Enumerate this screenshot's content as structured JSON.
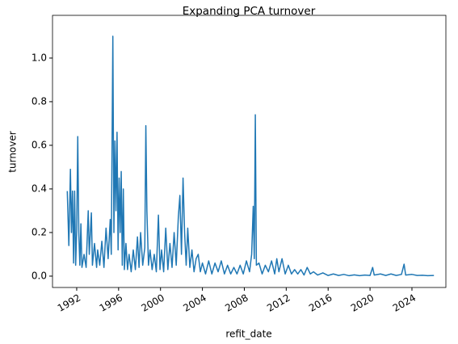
{
  "chart_data": {
    "type": "line",
    "title": "Expanding PCA turnover",
    "xlabel": "refit_date",
    "ylabel": "turnover",
    "xlim": [
      1989.69,
      2027.24
    ],
    "xticks": [
      1992,
      1996,
      2000,
      2004,
      2008,
      2012,
      2016,
      2020,
      2024
    ],
    "ylim": [
      -0.052,
      1.196
    ],
    "yticks": [
      {
        "value": 0,
        "label": "0.0"
      },
      0.2,
      0.4,
      0.6,
      0.8,
      {
        "value": 1,
        "label": "1.0"
      }
    ],
    "grid": false,
    "series": [
      {
        "name": "turnover",
        "color": "#1f77b4",
        "x": [
          1991.1,
          1991.25,
          1991.4,
          1991.5,
          1991.6,
          1991.7,
          1991.8,
          1991.9,
          1992.0,
          1992.1,
          1992.2,
          1992.3,
          1992.4,
          1992.5,
          1992.7,
          1992.9,
          1993.1,
          1993.2,
          1993.4,
          1993.5,
          1993.7,
          1993.9,
          1994.0,
          1994.2,
          1994.4,
          1994.6,
          1994.8,
          1995.0,
          1995.2,
          1995.3,
          1995.45,
          1995.55,
          1995.65,
          1995.75,
          1995.85,
          1995.95,
          1996.05,
          1996.15,
          1996.25,
          1996.35,
          1996.45,
          1996.55,
          1996.7,
          1996.85,
          1997.0,
          1997.2,
          1997.4,
          1997.6,
          1997.8,
          1997.95,
          1998.1,
          1998.3,
          1998.5,
          1998.6,
          1998.7,
          1998.85,
          1999.0,
          1999.2,
          1999.4,
          1999.6,
          1999.8,
          1999.95,
          2000.1,
          2000.3,
          2000.5,
          2000.7,
          2000.9,
          2001.1,
          2001.3,
          2001.5,
          2001.7,
          2001.85,
          2002.0,
          2002.15,
          2002.3,
          2002.45,
          2002.6,
          2002.8,
          2003.0,
          2003.2,
          2003.4,
          2003.6,
          2003.8,
          2004.0,
          2004.3,
          2004.6,
          2004.9,
          2005.2,
          2005.5,
          2005.8,
          2006.1,
          2006.4,
          2006.7,
          2007.0,
          2007.3,
          2007.6,
          2007.9,
          2008.2,
          2008.5,
          2008.7,
          2008.85,
          2008.95,
          2009.05,
          2009.15,
          2009.4,
          2009.7,
          2010.0,
          2010.3,
          2010.6,
          2010.9,
          2011.1,
          2011.3,
          2011.6,
          2011.9,
          2012.2,
          2012.5,
          2012.8,
          2013.1,
          2013.4,
          2013.7,
          2014.0,
          2014.3,
          2014.6,
          2015.0,
          2015.5,
          2016.0,
          2016.5,
          2017.0,
          2017.5,
          2018.0,
          2018.5,
          2019.0,
          2019.5,
          2020.0,
          2020.25,
          2020.4,
          2021.0,
          2021.5,
          2022.0,
          2022.5,
          2023.0,
          2023.25,
          2023.4,
          2024.0,
          2024.5,
          2025.0,
          2025.5,
          2026.1
        ],
        "values": [
          0.39,
          0.14,
          0.49,
          0.2,
          0.39,
          0.06,
          0.39,
          0.05,
          0.21,
          0.64,
          0.2,
          0.05,
          0.24,
          0.04,
          0.1,
          0.04,
          0.3,
          0.1,
          0.29,
          0.05,
          0.15,
          0.04,
          0.12,
          0.05,
          0.16,
          0.04,
          0.22,
          0.08,
          0.26,
          0.1,
          1.1,
          0.2,
          0.62,
          0.3,
          0.66,
          0.12,
          0.45,
          0.2,
          0.48,
          0.05,
          0.4,
          0.03,
          0.15,
          0.03,
          0.1,
          0.02,
          0.12,
          0.03,
          0.18,
          0.04,
          0.2,
          0.05,
          0.13,
          0.69,
          0.3,
          0.05,
          0.12,
          0.03,
          0.1,
          0.02,
          0.28,
          0.03,
          0.12,
          0.02,
          0.22,
          0.03,
          0.15,
          0.04,
          0.2,
          0.05,
          0.27,
          0.37,
          0.1,
          0.45,
          0.2,
          0.05,
          0.22,
          0.04,
          0.12,
          0.02,
          0.08,
          0.1,
          0.02,
          0.06,
          0.01,
          0.07,
          0.01,
          0.06,
          0.02,
          0.07,
          0.01,
          0.05,
          0.01,
          0.04,
          0.01,
          0.05,
          0.01,
          0.07,
          0.02,
          0.1,
          0.32,
          0.08,
          0.74,
          0.05,
          0.06,
          0.01,
          0.05,
          0.02,
          0.07,
          0.01,
          0.08,
          0.02,
          0.08,
          0.01,
          0.05,
          0.01,
          0.03,
          0.01,
          0.03,
          0.005,
          0.04,
          0.01,
          0.02,
          0.005,
          0.015,
          0.003,
          0.01,
          0.003,
          0.008,
          0.002,
          0.006,
          0.002,
          0.005,
          0.003,
          0.04,
          0.005,
          0.01,
          0.003,
          0.01,
          0.003,
          0.008,
          0.055,
          0.005,
          0.008,
          0.003,
          0.004,
          0.002,
          0.003
        ]
      }
    ]
  }
}
